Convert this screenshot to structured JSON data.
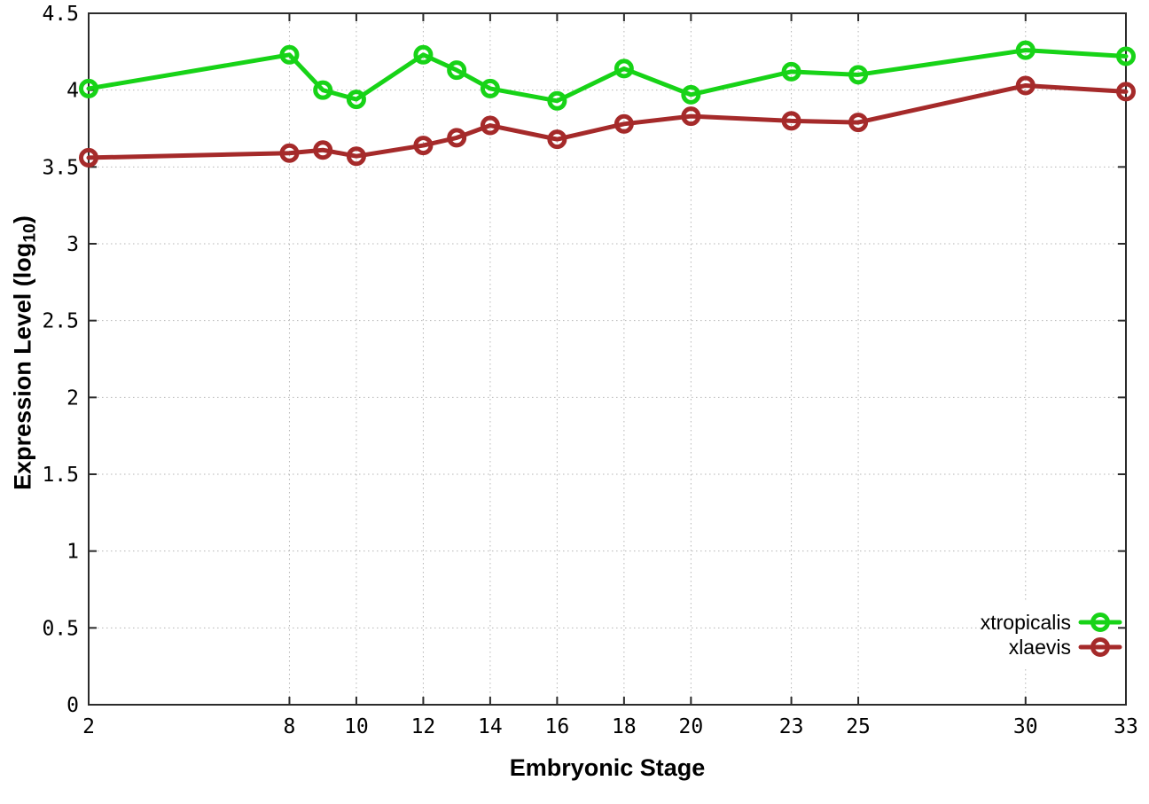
{
  "chart_data": {
    "type": "line",
    "xlabel": "Embryonic Stage",
    "ylabel": {
      "prefix": "Expression Level (log",
      "sub": "10",
      "suffix": ")"
    },
    "x": [
      2,
      8,
      9,
      10,
      12,
      13,
      14,
      16,
      18,
      20,
      23,
      25,
      30,
      33
    ],
    "series": [
      {
        "name": "xtropicalis",
        "color": "#17d317",
        "values": [
          4.01,
          4.23,
          4.0,
          3.94,
          4.23,
          4.13,
          4.01,
          3.93,
          4.14,
          3.97,
          4.12,
          4.1,
          4.26,
          4.22
        ]
      },
      {
        "name": "xlaevis",
        "color": "#a52a2a",
        "values": [
          3.56,
          3.59,
          3.61,
          3.57,
          3.64,
          3.69,
          3.77,
          3.68,
          3.78,
          3.83,
          3.8,
          3.79,
          4.03,
          3.99
        ]
      }
    ],
    "xlim": [
      2,
      33
    ],
    "ylim": [
      0,
      4.5
    ],
    "xticks": [
      2,
      8,
      10,
      12,
      14,
      16,
      18,
      20,
      23,
      25,
      30,
      33
    ],
    "xtick_labels": [
      "2",
      "8",
      "10",
      "12",
      "14",
      "16",
      "18",
      "20",
      "23",
      "25",
      "30",
      "33"
    ],
    "yticks": [
      0,
      0.5,
      1,
      1.5,
      2,
      2.5,
      3,
      3.5,
      4,
      4.5
    ],
    "ytick_labels": [
      "0",
      "0.5",
      "1",
      "1.5",
      "2",
      "2.5",
      "3",
      "3.5",
      "4",
      "4.5"
    ],
    "grid": true,
    "marker": "open-circle",
    "legend_position": "bottom-right-inside",
    "colors": {
      "background": "#ffffff",
      "border": "#2b2b2b",
      "grid": "#b5b5b5",
      "text": "#000000"
    }
  }
}
